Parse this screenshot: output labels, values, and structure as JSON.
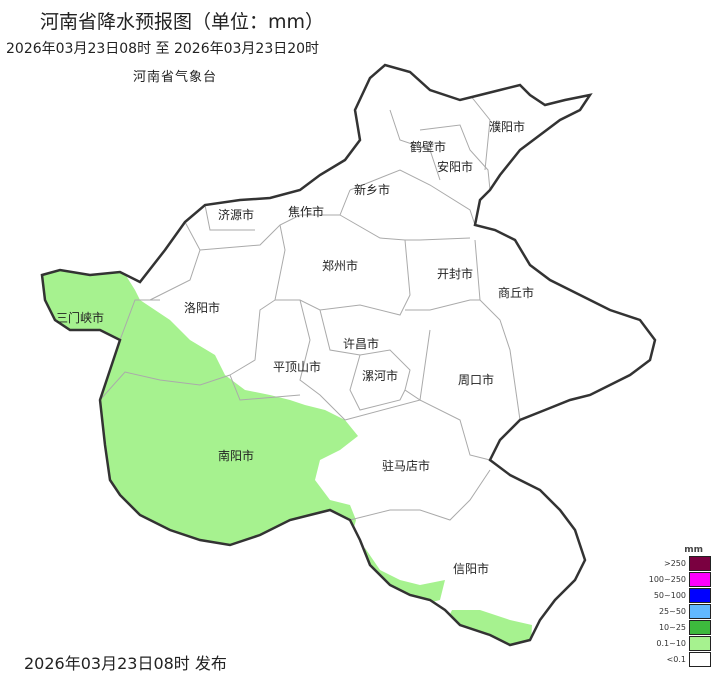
{
  "header": {
    "title": "河南省降水预报图（单位：mm）",
    "period": "2026年03月23日08时  至  2026年03月23日20时",
    "agency": "河南省气象台"
  },
  "footer": {
    "issued": "2026年03月23日08时 发布"
  },
  "map": {
    "region": "河南省",
    "cities": [
      "濮阳市",
      "鹤壁市",
      "安阳市",
      "新乡市",
      "济源市",
      "焦作市",
      "郑州市",
      "开封市",
      "商丘市",
      "三门峡市",
      "洛阳市",
      "许昌市",
      "平顶山市",
      "漯河市",
      "周口市",
      "南阳市",
      "驻马店市",
      "信阳市"
    ],
    "rain_color": "#a6f28f"
  },
  "legend": {
    "unit": "mm",
    "items": [
      {
        "label": ">250",
        "color": "#7a0040"
      },
      {
        "label": "100~250",
        "color": "#ff00ff"
      },
      {
        "label": "50~100",
        "color": "#0000ff"
      },
      {
        "label": "25~50",
        "color": "#61b8ff"
      },
      {
        "label": "10~25",
        "color": "#3db93d"
      },
      {
        "label": "0.1~10",
        "color": "#a6f28f"
      },
      {
        "label": "<0.1",
        "color": "#ffffff"
      }
    ]
  }
}
